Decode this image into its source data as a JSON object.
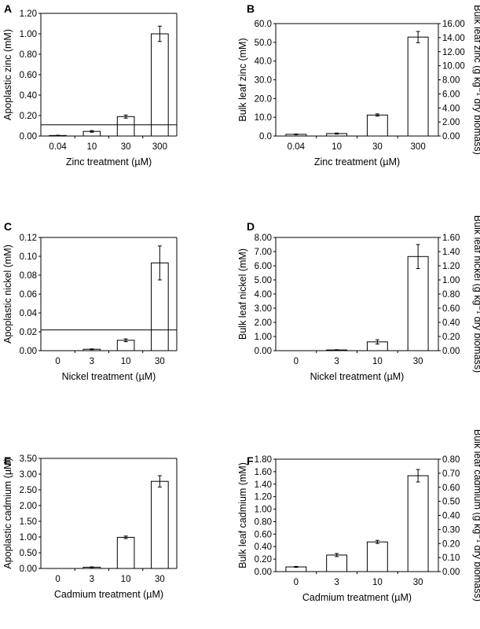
{
  "figure": {
    "panels": [
      "A",
      "B",
      "C",
      "D",
      "E",
      "F"
    ]
  },
  "chart_data": [
    {
      "panel": "A",
      "type": "bar",
      "categories": [
        "0.04",
        "10",
        "30",
        "300"
      ],
      "values": [
        0.005,
        0.045,
        0.19,
        1.0
      ],
      "errors": [
        0.003,
        0.008,
        0.015,
        0.075
      ],
      "xlabel": "Zinc treatment (µM)",
      "ylabel": "Apoplastic zinc (mM)",
      "ylim": [
        0,
        1.2
      ],
      "yticks": [
        "0.00",
        "0.20",
        "0.40",
        "0.60",
        "0.80",
        "1.00",
        "1.20"
      ],
      "reference_line": 0.11
    },
    {
      "panel": "B",
      "type": "bar",
      "categories": [
        "0.04",
        "10",
        "30",
        "300"
      ],
      "values": [
        0.9,
        1.3,
        11.2,
        52.8
      ],
      "errors": [
        0.2,
        0.3,
        0.6,
        3.0
      ],
      "xlabel": "Zinc treatment (µM)",
      "ylabel": "Bulk leaf zinc (mM)",
      "ylim": [
        0,
        60
      ],
      "yticks": [
        "0.0",
        "10.0",
        "20.0",
        "30.0",
        "40.0",
        "50.0",
        "60.0"
      ],
      "y2label": "Bulk leaf zinc (g kg⁻¹ dry biomass)",
      "y2lim": [
        0,
        16
      ],
      "y2ticks": [
        "0.00",
        "2.00",
        "4.00",
        "6.00",
        "8.00",
        "10.00",
        "12.00",
        "14.00",
        "16.00"
      ]
    },
    {
      "panel": "C",
      "type": "bar",
      "categories": [
        "0",
        "3",
        "10",
        "30"
      ],
      "values": [
        0.0,
        0.0015,
        0.011,
        0.093
      ],
      "errors": [
        0.0,
        0.0004,
        0.0015,
        0.018
      ],
      "xlabel": "Nickel treatment (µM)",
      "ylabel": "Apoplastic nickel (mM)",
      "ylim": [
        0,
        0.12
      ],
      "yticks": [
        "0.00",
        "0.02",
        "0.04",
        "0.06",
        "0.08",
        "0.10",
        "0.12"
      ],
      "reference_line": 0.022
    },
    {
      "panel": "D",
      "type": "bar",
      "categories": [
        "0",
        "3",
        "10",
        "30"
      ],
      "values": [
        0.0,
        0.05,
        0.62,
        6.65
      ],
      "errors": [
        0.0,
        0.02,
        0.15,
        0.85
      ],
      "xlabel": "Nickel treatment (µM)",
      "ylabel": "Bulk leaf nickel (mM)",
      "ylim": [
        0,
        8
      ],
      "yticks": [
        "0.00",
        "1.00",
        "2.00",
        "3.00",
        "4.00",
        "5.00",
        "6.00",
        "7.00",
        "8.00"
      ],
      "y2label": "Bulk leaf nickel (g kg⁻¹ dry biomass)",
      "y2lim": [
        0,
        1.6
      ],
      "y2ticks": [
        "0.00",
        "0.20",
        "0.40",
        "0.60",
        "0.80",
        "1.00",
        "1.20",
        "1.40",
        "1.60"
      ]
    },
    {
      "panel": "E",
      "type": "bar",
      "categories": [
        "0",
        "3",
        "10",
        "30"
      ],
      "values": [
        0.0,
        0.04,
        0.99,
        2.77
      ],
      "errors": [
        0.0,
        0.01,
        0.04,
        0.18
      ],
      "xlabel": "Cadmium treatment (µM)",
      "ylabel": "Apoplastic cadmium (µM)",
      "ylim": [
        0,
        3.5
      ],
      "yticks": [
        "0.00",
        "0.50",
        "1.00",
        "1.50",
        "2.00",
        "2.50",
        "3.00",
        "3.50"
      ]
    },
    {
      "panel": "F",
      "type": "bar",
      "categories": [
        "0",
        "3",
        "10",
        "30"
      ],
      "values": [
        0.075,
        0.265,
        0.475,
        1.535
      ],
      "errors": [
        0.008,
        0.025,
        0.025,
        0.1
      ],
      "xlabel": "Cadmium treatment (µM)",
      "ylabel": "Bulk leaf cadmium (mM)",
      "ylim": [
        0,
        1.8
      ],
      "yticks": [
        "0.00",
        "0.20",
        "0.40",
        "0.60",
        "0.80",
        "1.00",
        "1.20",
        "1.40",
        "1.60",
        "1.80"
      ],
      "y2label": "Bulk leaf cadmium (g kg⁻¹ dry biomass)",
      "y2lim": [
        0,
        0.8
      ],
      "y2ticks": [
        "0.00",
        "0.10",
        "0.20",
        "0.30",
        "0.40",
        "0.50",
        "0.60",
        "0.70",
        "0.80"
      ]
    }
  ]
}
